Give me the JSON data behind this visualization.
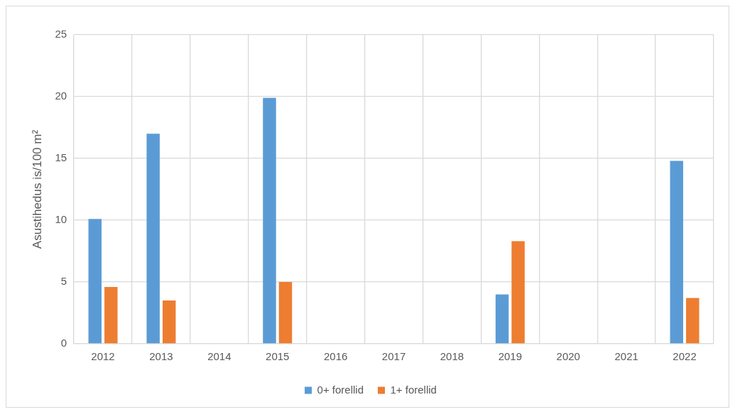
{
  "chart_data": {
    "type": "bar",
    "ylabel": "Asustihedus is/100 m²",
    "categories": [
      "2012",
      "2013",
      "2014",
      "2015",
      "2016",
      "2017",
      "2018",
      "2019",
      "2020",
      "2021",
      "2022"
    ],
    "series": [
      {
        "name": "0+ forellid",
        "color": "#5b9bd5",
        "values": [
          10.1,
          17.0,
          null,
          19.9,
          null,
          null,
          null,
          4.0,
          null,
          null,
          14.8
        ]
      },
      {
        "name": "1+ forellid",
        "color": "#ed7d31",
        "values": [
          4.6,
          3.5,
          null,
          5.0,
          null,
          null,
          null,
          8.3,
          null,
          null,
          3.7
        ]
      }
    ],
    "ylim": [
      0,
      25
    ],
    "yticks": [
      0,
      5,
      10,
      15,
      20,
      25
    ],
    "grid": true,
    "legend": "bottom"
  }
}
